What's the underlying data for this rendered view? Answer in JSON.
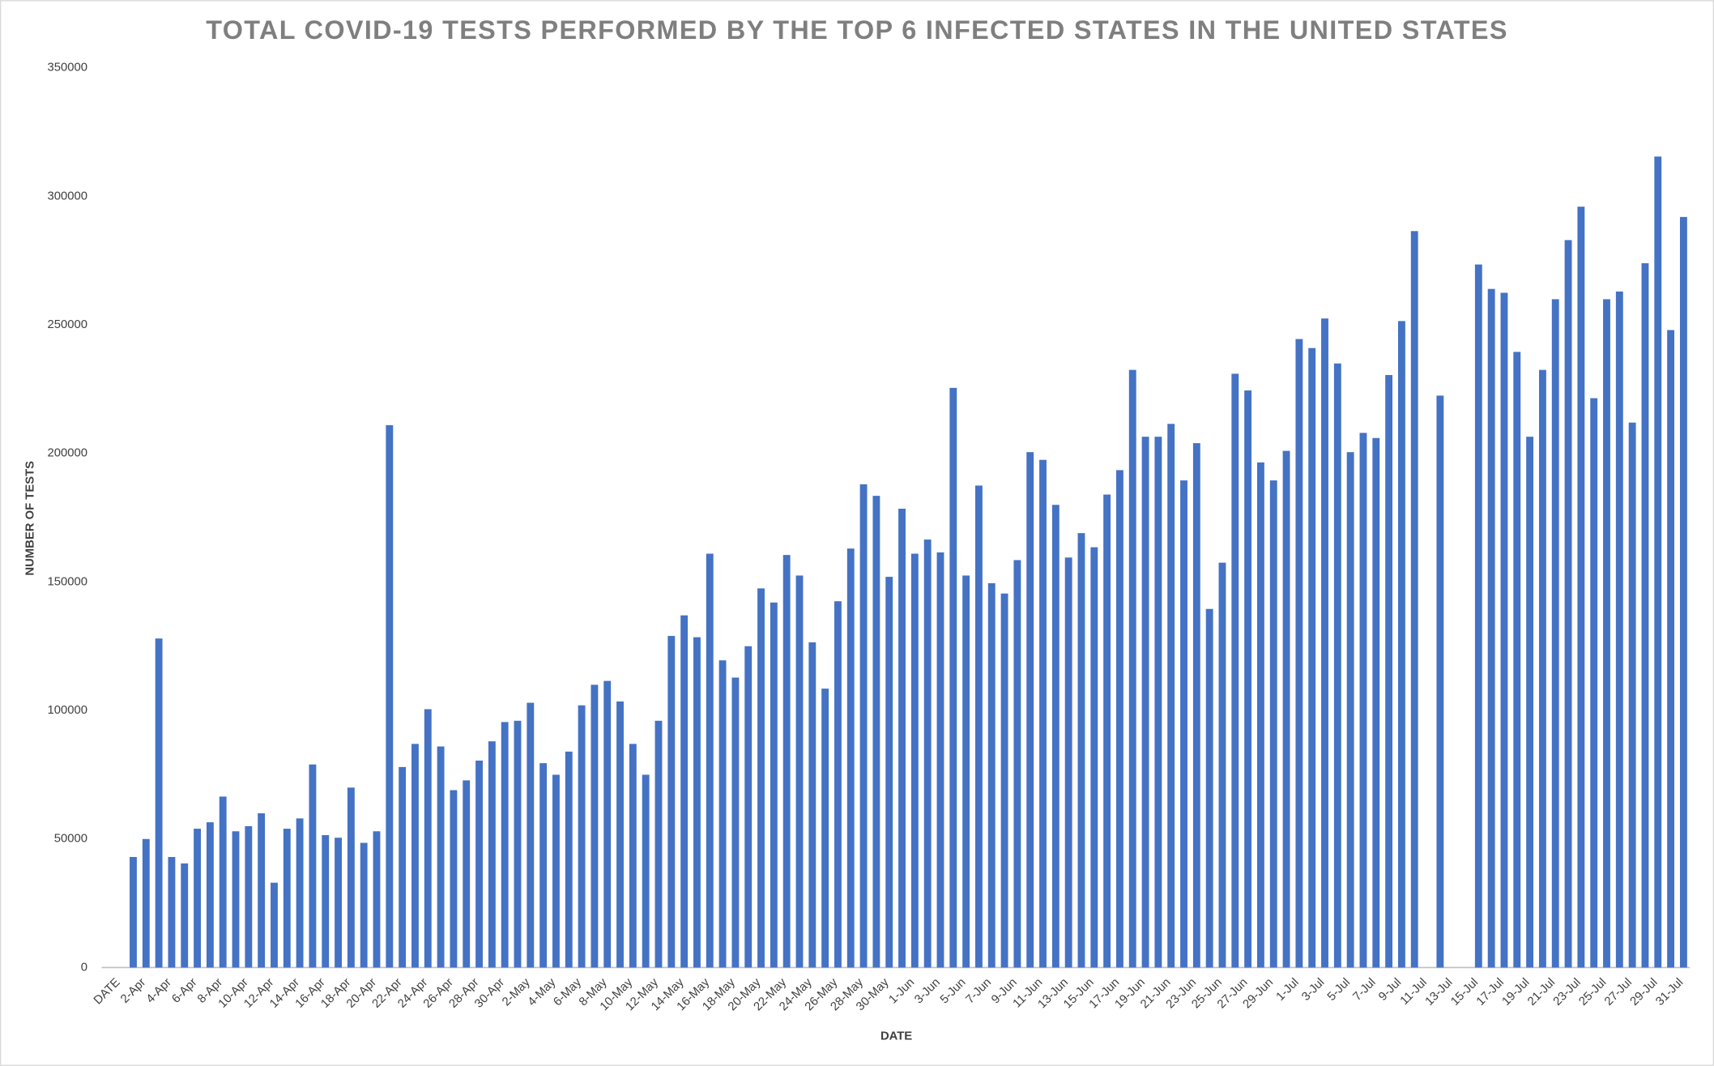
{
  "chart_data": {
    "type": "bar",
    "title": "TOTAL COVID-19 TESTS PERFORMED BY THE TOP 6 INFECTED STATES IN THE UNITED STATES",
    "x_label": "DATE",
    "y_label": "NUMBER OF TESTS",
    "color": "#4472c4",
    "ylim": [
      0,
      350000
    ],
    "yticks": [
      0,
      50000,
      100000,
      150000,
      200000,
      250000,
      300000,
      350000
    ],
    "grid": false,
    "categories": [
      "DATE",
      null,
      "2-Apr",
      null,
      "4-Apr",
      null,
      "6-Apr",
      null,
      "8-Apr",
      null,
      "10-Apr",
      null,
      "12-Apr",
      null,
      "14-Apr",
      null,
      "16-Apr",
      null,
      "18-Apr",
      null,
      "20-Apr",
      null,
      "22-Apr",
      null,
      "24-Apr",
      null,
      "26-Apr",
      null,
      "28-Apr",
      null,
      "30-Apr",
      null,
      "2-May",
      null,
      "4-May",
      null,
      "6-May",
      null,
      "8-May",
      null,
      "10-May",
      null,
      "12-May",
      null,
      "14-May",
      null,
      "16-May",
      null,
      "18-May",
      null,
      "20-May",
      null,
      "22-May",
      null,
      "24-May",
      null,
      "26-May",
      null,
      "28-May",
      null,
      "30-May",
      null,
      "1-Jun",
      null,
      "3-Jun",
      null,
      "5-Jun",
      null,
      "7-Jun",
      null,
      "9-Jun",
      null,
      "11-Jun",
      null,
      "13-Jun",
      null,
      "15-Jun",
      null,
      "17-Jun",
      null,
      "19-Jun",
      null,
      "21-Jun",
      null,
      "23-Jun",
      null,
      "25-Jun",
      null,
      "27-Jun",
      null,
      "29-Jun",
      null,
      "1-Jul",
      null,
      "3-Jul",
      null,
      "5-Jul",
      null,
      "7-Jul",
      null,
      "9-Jul",
      null,
      "11-Jul",
      null,
      "13-Jul",
      null,
      "15-Jul",
      null,
      "17-Jul",
      null,
      "19-Jul",
      null,
      "21-Jul",
      null,
      "23-Jul",
      null,
      "25-Jul",
      null,
      "27-Jul",
      null,
      "29-Jul",
      null,
      "31-Jul"
    ],
    "values": [
      null,
      43000,
      50000,
      128000,
      43000,
      40500,
      54000,
      56500,
      66500,
      53000,
      55000,
      60000,
      33000,
      54000,
      58000,
      79000,
      51500,
      50500,
      70000,
      48500,
      53000,
      211000,
      78000,
      87000,
      100500,
      86000,
      69000,
      72800,
      80500,
      88000,
      95500,
      96000,
      103000,
      79500,
      75000,
      84000,
      102000,
      110000,
      111500,
      103500,
      87000,
      75000,
      96000,
      129000,
      137000,
      128500,
      161000,
      119500,
      112800,
      125000,
      147500,
      142000,
      160500,
      152500,
      126500,
      108500,
      142500,
      163000,
      188000,
      183500,
      152000,
      178500,
      161000,
      166500,
      161500,
      225500,
      152500,
      187500,
      149500,
      145500,
      158500,
      200500,
      197500,
      180000,
      159500,
      169000,
      163500,
      184000,
      193500,
      232500,
      206500,
      206500,
      211500,
      189500,
      204000,
      139500,
      157500,
      231000,
      224500,
      196500,
      189500,
      201000,
      244500,
      241000,
      252500,
      235000,
      200500,
      208000,
      206000,
      230500,
      251500,
      286500,
      null,
      222500,
      null,
      null,
      273500,
      264000,
      262500,
      239500,
      206500,
      232500,
      260000,
      283000,
      296000,
      221500,
      260000,
      263000,
      212000,
      274000,
      315500,
      248000,
      292000
    ]
  }
}
